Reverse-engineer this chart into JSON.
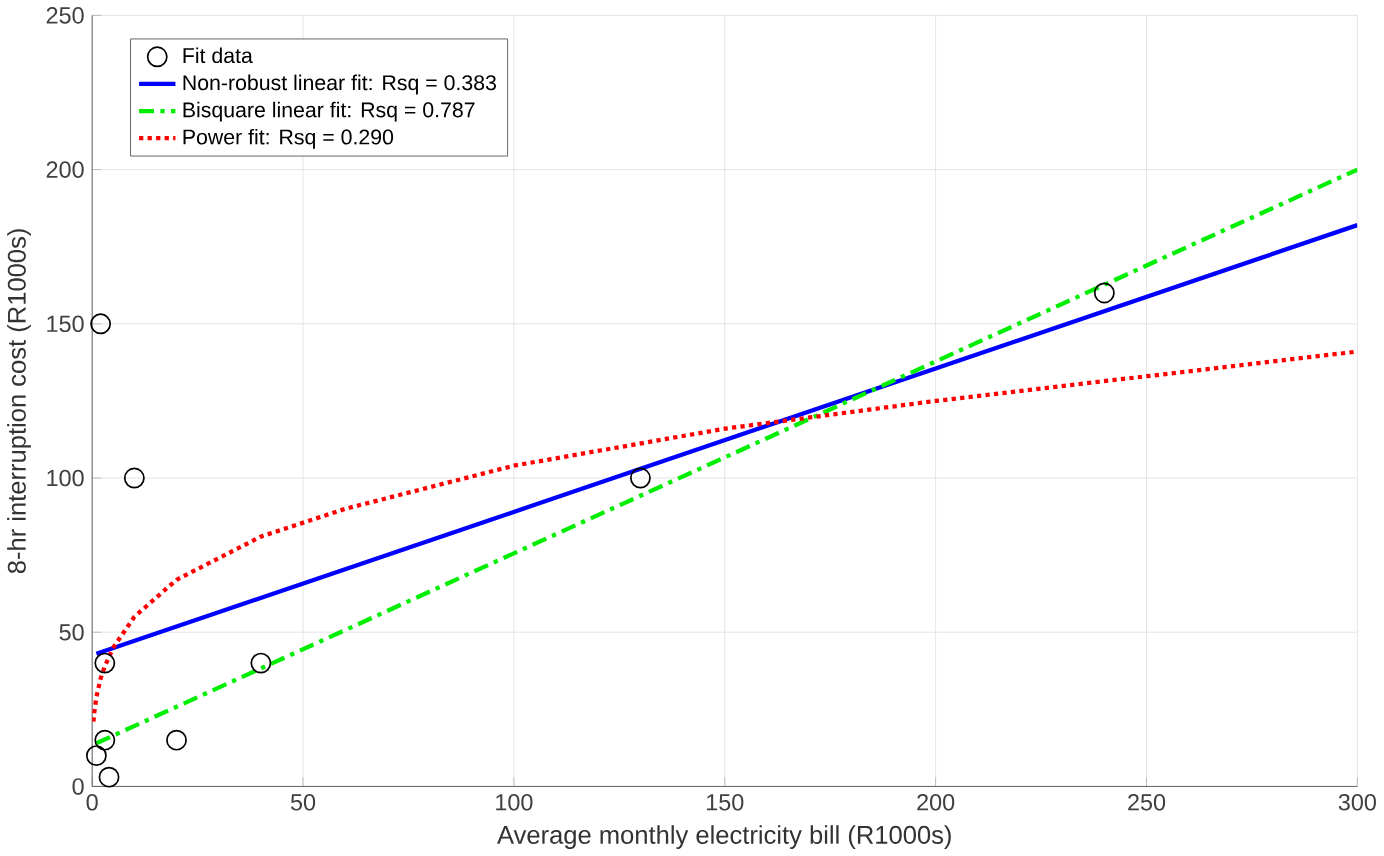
{
  "chart_data": {
    "type": "scatter",
    "xlabel": "Average monthly electricity bill (R1000s)",
    "ylabel": "8-hr interruption cost (R1000s)",
    "series": [
      {
        "name": "Fit data",
        "color": "#000000",
        "marker": "circle",
        "x": [
          2,
          10,
          3,
          3,
          1,
          4,
          20,
          40,
          130,
          240
        ],
        "values": [
          150,
          100,
          40,
          15,
          10,
          3,
          15,
          40,
          100,
          160
        ]
      },
      {
        "name": "Non-robust linear fit: Rsq = 0.383",
        "type": "line",
        "color": "#0000ff",
        "line_style": "solid",
        "marker": "none",
        "x": [
          1,
          300
        ],
        "values": [
          43,
          182
        ]
      },
      {
        "name": "Bisquare linear fit: Rsq = 0.787",
        "type": "line",
        "color": "#00ee00",
        "line_style": "dashed",
        "marker": "none",
        "x": [
          1,
          300
        ],
        "values": [
          14,
          200
        ]
      },
      {
        "name": "Power fit: Rsq = 0.290",
        "type": "line",
        "color": "#ff0000",
        "line_style": "dotted",
        "marker": "none",
        "x": [
          0.3,
          0.5,
          1,
          2,
          3,
          5,
          10,
          20,
          40,
          60,
          100,
          150,
          200,
          250,
          300
        ],
        "values": [
          21,
          24,
          29,
          35,
          39,
          45,
          55,
          67,
          81,
          90,
          104,
          116,
          125,
          133,
          141
        ]
      }
    ],
    "xlim": [
      0,
      300
    ],
    "ylim": [
      0,
      250
    ],
    "xticks": [
      0,
      50,
      100,
      150,
      200,
      250,
      300
    ],
    "yticks": [
      0,
      50,
      100,
      150,
      200,
      250
    ],
    "grid": true,
    "legend": "top left"
  }
}
